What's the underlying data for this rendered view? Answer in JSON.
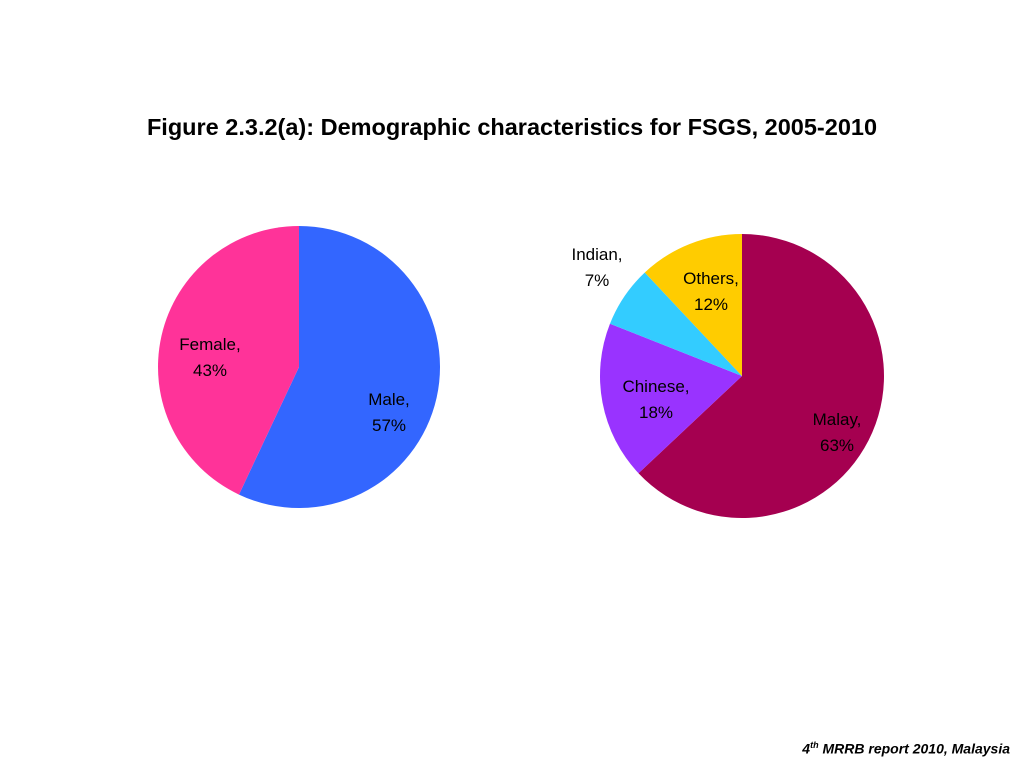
{
  "title": "Figure 2.3.2(a): Demographic characteristics for FSGS, 2005-2010",
  "chart_data": [
    {
      "type": "pie",
      "slices": [
        {
          "label": "Male",
          "value": 57,
          "display": [
            "Male,",
            "57%"
          ],
          "color": "#3366FF"
        },
        {
          "label": "Female",
          "value": 43,
          "display": [
            "Female,",
            "43%"
          ],
          "color": "#FF3399"
        }
      ]
    },
    {
      "type": "pie",
      "slices": [
        {
          "label": "Malay",
          "value": 63,
          "display": [
            "Malay,",
            "63%"
          ],
          "color": "#A50050"
        },
        {
          "label": "Chinese",
          "value": 18,
          "display": [
            "Chinese,",
            "18%"
          ],
          "color": "#9933FF"
        },
        {
          "label": "Indian",
          "value": 7,
          "display": [
            "Indian,",
            "7%"
          ],
          "color": "#33CCFF"
        },
        {
          "label": "Others",
          "value": 12,
          "display": [
            "Others,",
            "12%"
          ],
          "color": "#FFCC00"
        }
      ]
    }
  ],
  "source_pre": "4",
  "source_sup": "th",
  "source_post": " MRRB report 2010, Malaysia"
}
